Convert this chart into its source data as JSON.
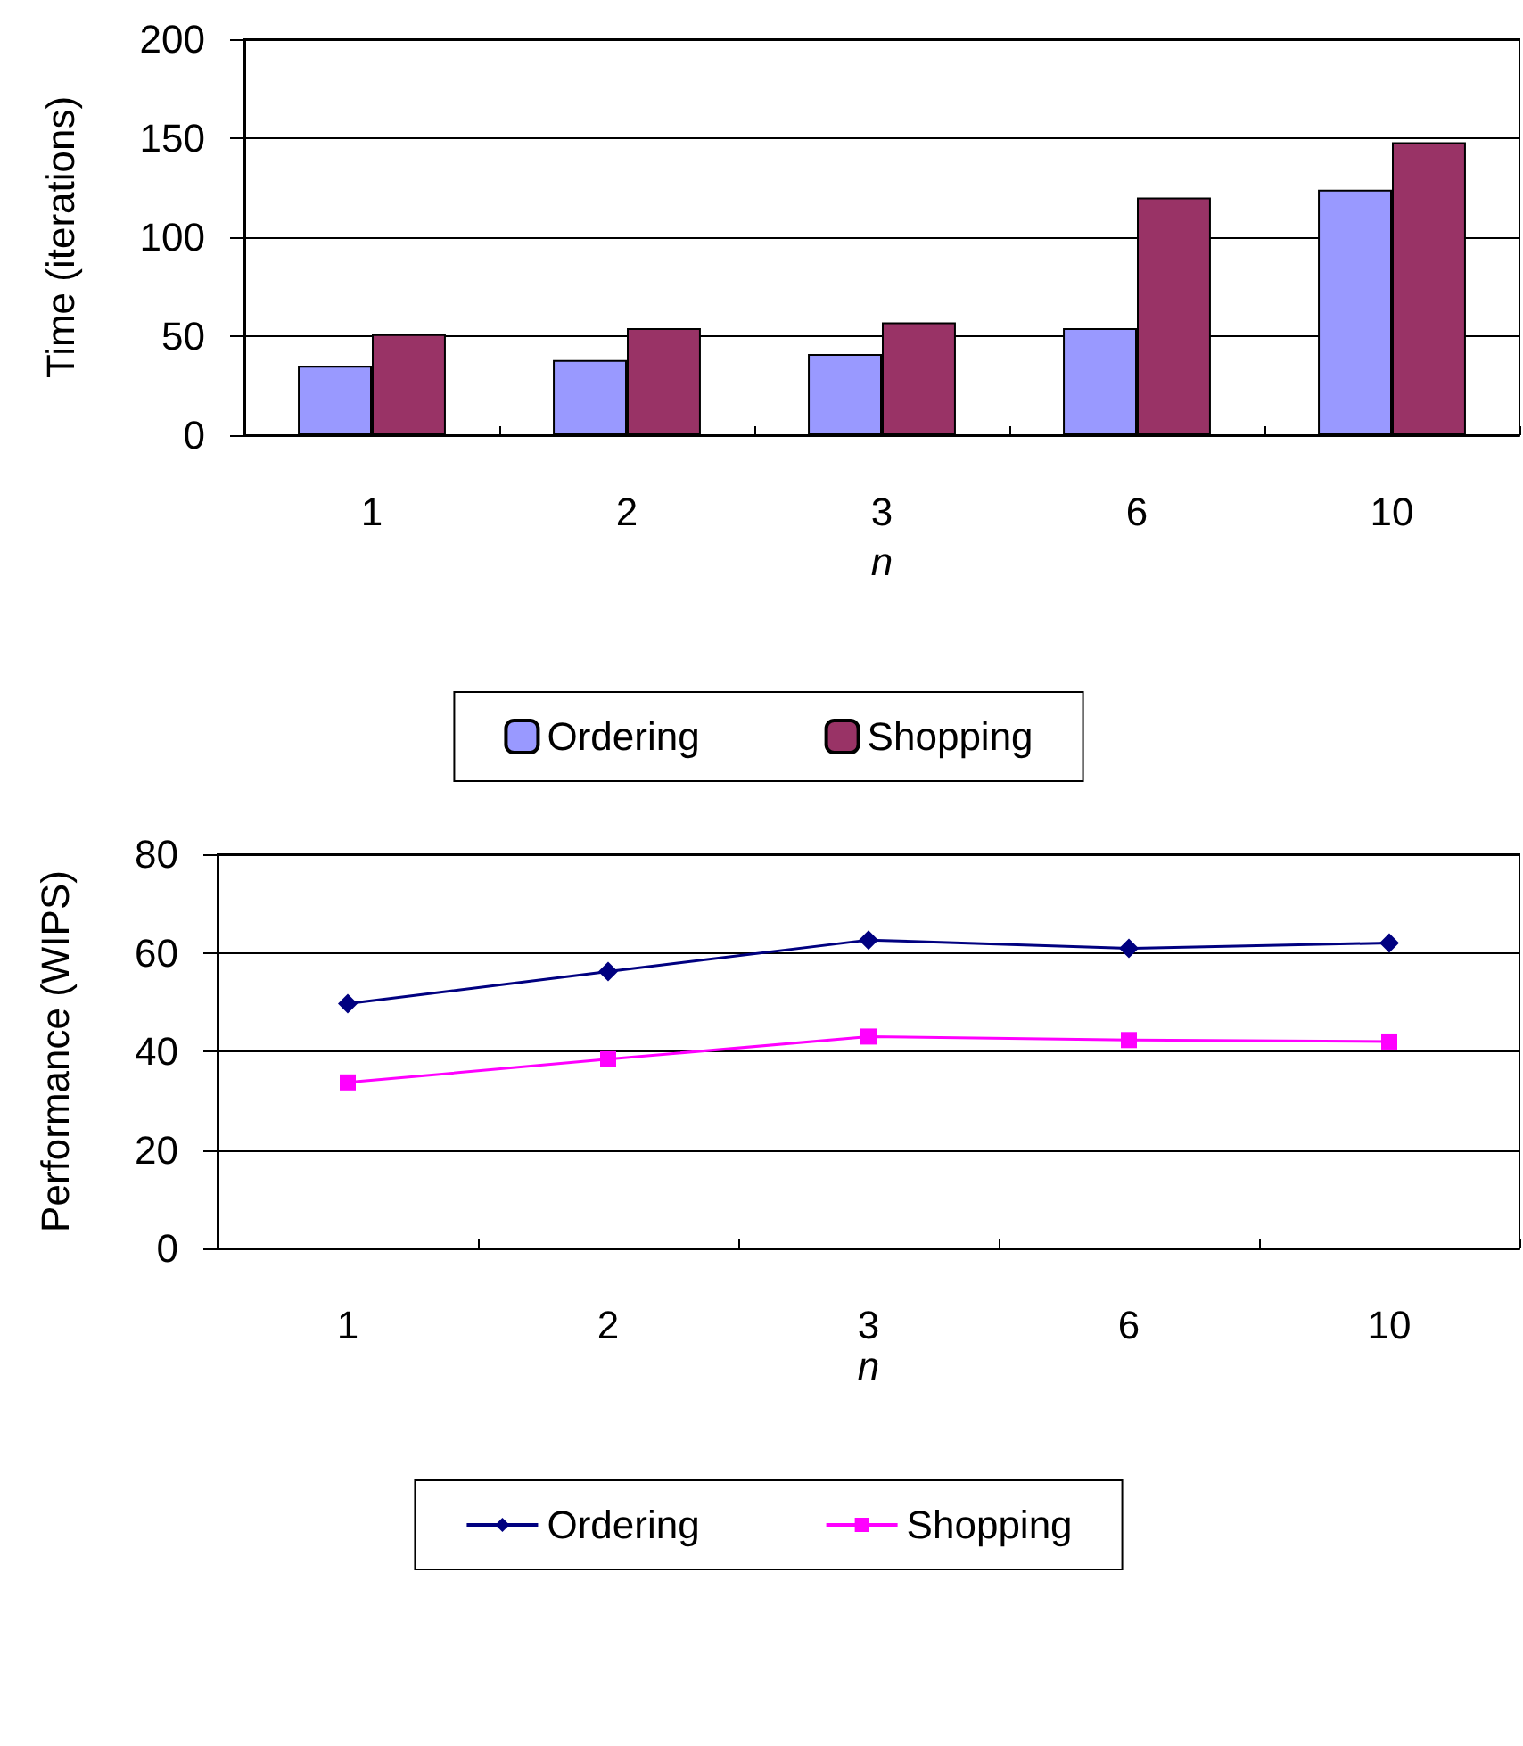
{
  "chart_data": [
    {
      "type": "bar",
      "categories": [
        "1",
        "2",
        "3",
        "6",
        "10"
      ],
      "xlabel": "n",
      "ylabel": "Time (iterations)",
      "ylim": [
        0,
        200
      ],
      "yticks": [
        0,
        50,
        100,
        150,
        200
      ],
      "grid": "y",
      "legend": "bottom",
      "series": [
        {
          "name": "Ordering",
          "color": "#9999ff",
          "values": [
            35,
            38,
            41,
            54,
            124
          ]
        },
        {
          "name": "Shopping",
          "color": "#993366",
          "values": [
            51,
            54,
            57,
            120,
            148
          ]
        }
      ]
    },
    {
      "type": "line",
      "categories": [
        "1",
        "2",
        "3",
        "6",
        "10"
      ],
      "xlabel": "n",
      "ylabel": "Performance (WIPS)",
      "ylim": [
        0,
        80
      ],
      "yticks": [
        0,
        20,
        40,
        60,
        80
      ],
      "grid": "y",
      "legend": "bottom",
      "series": [
        {
          "name": "Ordering",
          "color": "#000080",
          "marker": "diamond",
          "values": [
            49.7,
            56.2,
            62.6,
            60.9,
            62
          ]
        },
        {
          "name": "Shopping",
          "color": "#ff00ff",
          "marker": "square",
          "values": [
            33.7,
            38.4,
            43,
            42.3,
            42
          ]
        }
      ]
    }
  ]
}
